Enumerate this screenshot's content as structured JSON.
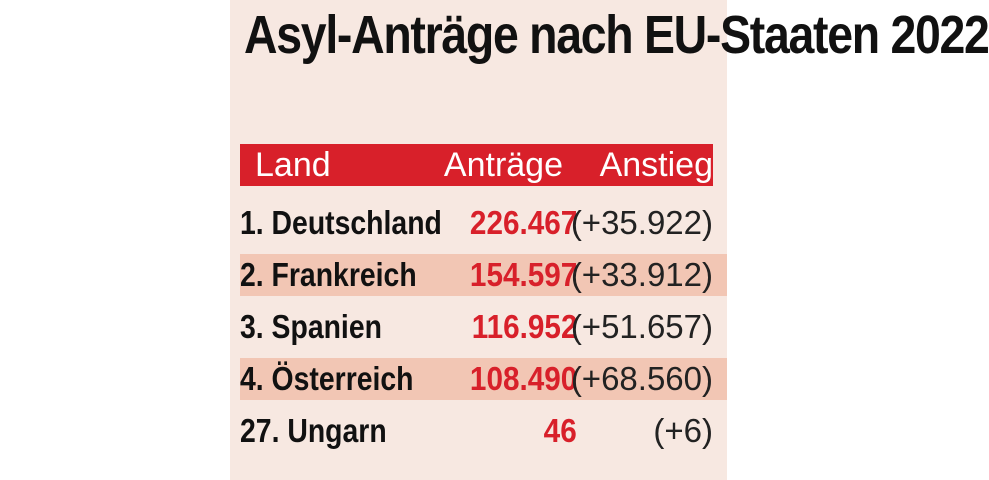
{
  "chart_data": {
    "type": "table",
    "title": "Asyl-Anträge nach EU-Staaten 2022",
    "columns": [
      "Land",
      "Anträge",
      "Anstieg"
    ],
    "rows": [
      {
        "label": "1. Deutschland",
        "country": "Deutschland",
        "rank": 1,
        "value_text": "226.467",
        "value": 226467,
        "change_text": "(+35.922)",
        "change": 35922
      },
      {
        "label": "2.  Frankreich",
        "country": "Frankreich",
        "rank": 2,
        "value_text": "154.597",
        "value": 154597,
        "change_text": "(+33.912)",
        "change": 33912
      },
      {
        "label": "3. Spanien",
        "country": "Spanien",
        "rank": 3,
        "value_text": "116.952",
        "value": 116952,
        "change_text": "(+51.657)",
        "change": 51657
      },
      {
        "label": "4. Österreich",
        "country": "Österreich",
        "rank": 4,
        "value_text": "108.490",
        "value": 108490,
        "change_text": "(+68.560)",
        "change": 68560
      },
      {
        "label": "27. Ungarn",
        "country": "Ungarn",
        "rank": 27,
        "value_text": "46",
        "value": 46,
        "change_text": "(+6)",
        "change": 6
      }
    ]
  },
  "colors": {
    "panel_background": "#f7e8e1",
    "header_background": "#d8202a",
    "header_text": "#ffffff",
    "row_shade": "#f2c6b4",
    "value_text": "#d8202a",
    "country_text": "#111111"
  }
}
